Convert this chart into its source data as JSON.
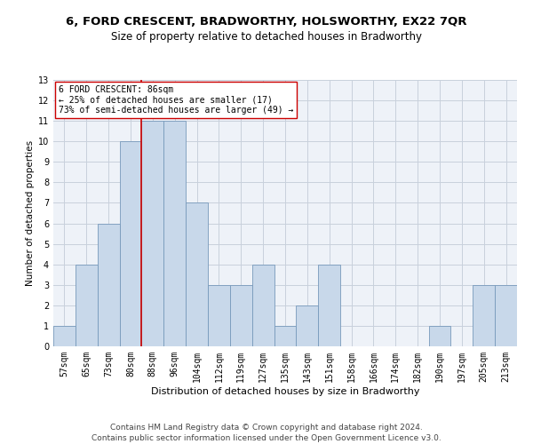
{
  "title": "6, FORD CRESCENT, BRADWORTHY, HOLSWORTHY, EX22 7QR",
  "subtitle": "Size of property relative to detached houses in Bradworthy",
  "xlabel": "Distribution of detached houses by size in Bradworthy",
  "ylabel": "Number of detached properties",
  "categories": [
    "57sqm",
    "65sqm",
    "73sqm",
    "80sqm",
    "88sqm",
    "96sqm",
    "104sqm",
    "112sqm",
    "119sqm",
    "127sqm",
    "135sqm",
    "143sqm",
    "151sqm",
    "158sqm",
    "166sqm",
    "174sqm",
    "182sqm",
    "190sqm",
    "197sqm",
    "205sqm",
    "213sqm"
  ],
  "values": [
    1,
    4,
    6,
    10,
    11,
    11,
    7,
    3,
    3,
    4,
    1,
    2,
    4,
    0,
    0,
    0,
    0,
    1,
    0,
    3,
    3
  ],
  "bar_color": "#c8d8ea",
  "bar_edgecolor": "#7799bb",
  "grid_color": "#c8d0dc",
  "vline_x_index": 4,
  "vline_color": "#cc0000",
  "annotation_text": "6 FORD CRESCENT: 86sqm\n← 25% of detached houses are smaller (17)\n73% of semi-detached houses are larger (49) →",
  "annotation_box_color": "#ffffff",
  "annotation_box_edgecolor": "#cc0000",
  "footer_line1": "Contains HM Land Registry data © Crown copyright and database right 2024.",
  "footer_line2": "Contains public sector information licensed under the Open Government Licence v3.0.",
  "ylim": [
    0,
    13
  ],
  "yticks": [
    0,
    1,
    2,
    3,
    4,
    5,
    6,
    7,
    8,
    9,
    10,
    11,
    12,
    13
  ],
  "background_color": "#eef2f8",
  "title_fontsize": 9.5,
  "subtitle_fontsize": 8.5,
  "xlabel_fontsize": 8,
  "ylabel_fontsize": 7.5,
  "tick_fontsize": 7,
  "annotation_fontsize": 7,
  "footer_fontsize": 6.5
}
